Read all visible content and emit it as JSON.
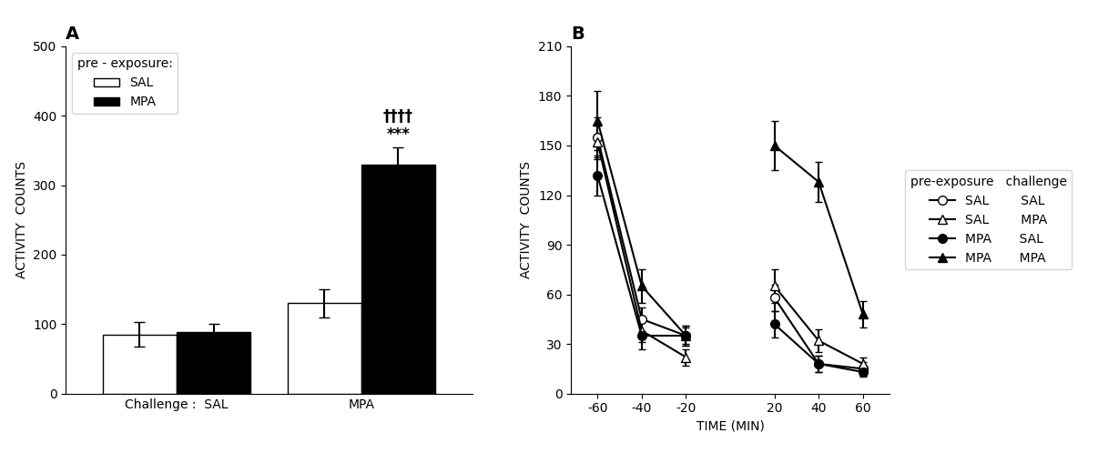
{
  "chart_data": [
    {
      "type": "bar",
      "title": "A",
      "ylabel": "ACTIVITY  COUNTS",
      "categories": [
        "Challenge :  SAL",
        "MPA"
      ],
      "series": [
        {
          "name": "SAL",
          "color": "white",
          "values": [
            85,
            130
          ],
          "errors": [
            18,
            20
          ]
        },
        {
          "name": "MPA",
          "color": "black",
          "values": [
            88,
            330
          ],
          "errors": [
            12,
            25
          ]
        }
      ],
      "legend_title": "pre - exposure:",
      "legend": "upper left",
      "annotations": [
        {
          "text": "***",
          "category": "MPA",
          "series": "MPA"
        },
        {
          "text": "††††",
          "category": "MPA",
          "series": "MPA"
        }
      ],
      "ylim": [
        0,
        500
      ],
      "yticks": [
        0,
        100,
        200,
        300,
        400,
        500
      ]
    },
    {
      "type": "line",
      "title": "B",
      "xlabel": "TIME (MIN)",
      "ylabel": "ACTIVITY  COUNTS",
      "categories": [
        "-60",
        "-40",
        "-20",
        null,
        "20",
        "40",
        "60"
      ],
      "series": [
        {
          "name": "SAL        SAL",
          "color": "white",
          "marker": "circle",
          "values": [
            155,
            45,
            35,
            null,
            58,
            18,
            15
          ],
          "errors": [
            12,
            7,
            5,
            null,
            8,
            5,
            4
          ]
        },
        {
          "name": "SAL        MPA",
          "color": "white",
          "marker": "triangle",
          "values": [
            152,
            38,
            22,
            null,
            65,
            32,
            18
          ],
          "errors": [
            10,
            7,
            5,
            null,
            10,
            7,
            4
          ]
        },
        {
          "name": "MPA       SAL",
          "color": "black",
          "marker": "circle",
          "values": [
            132,
            35,
            35,
            null,
            42,
            18,
            13
          ],
          "errors": [
            12,
            8,
            6,
            null,
            8,
            5,
            3
          ]
        },
        {
          "name": "MPA       MPA",
          "color": "black",
          "marker": "triangle",
          "values": [
            165,
            65,
            35,
            null,
            150,
            128,
            48
          ],
          "errors": [
            18,
            10,
            6,
            null,
            15,
            12,
            8
          ]
        }
      ],
      "legend_title": "pre-exposure   challenge",
      "legend": "right",
      "ylim": [
        0,
        210
      ],
      "yticks": [
        0,
        30,
        60,
        90,
        120,
        150,
        180,
        210
      ]
    }
  ]
}
